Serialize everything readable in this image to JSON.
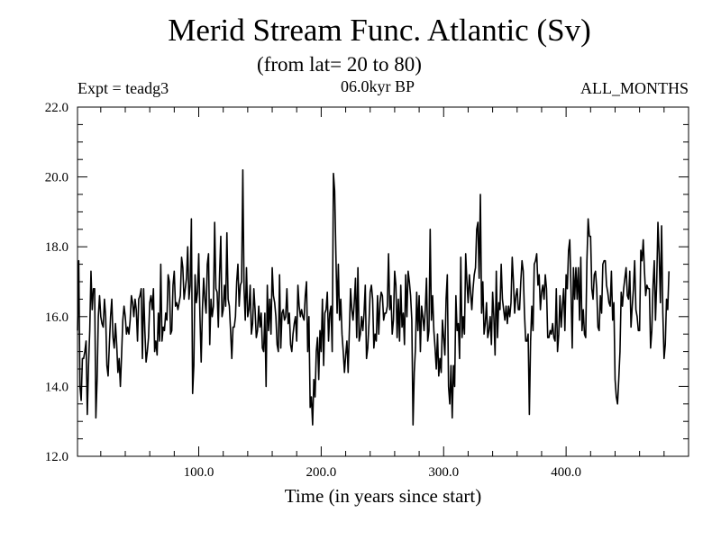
{
  "header": {
    "title": "Merid Stream Func. Atlantic (Sv)",
    "subtitle": "(from lat= 20 to 80)",
    "left_label": "Expt = teadg3",
    "center_label": "06.0kyr BP",
    "right_label": "ALL_MONTHS"
  },
  "chart_data": {
    "type": "line",
    "title": "Merid Stream Func. Atlantic (Sv)",
    "subtitle": "(from lat= 20 to 80)",
    "xlabel": "Time (in years since start)",
    "ylabel": "",
    "xlim": [
      1,
      500
    ],
    "ylim": [
      12.0,
      22.0
    ],
    "x_ticks": [
      100.0,
      200.0,
      300.0,
      400.0
    ],
    "x_tick_labels": [
      "100.0",
      "200.0",
      "300.0",
      "400.0"
    ],
    "y_ticks": [
      12.0,
      14.0,
      16.0,
      18.0,
      20.0,
      22.0
    ],
    "y_tick_labels": [
      "12.0",
      "14.0",
      "16.0",
      "18.0",
      "20.0",
      "22.0"
    ],
    "grid": false,
    "line_color": "#000000",
    "series": [
      {
        "name": "",
        "x_start": 1,
        "x_step": 1,
        "values": [
          15.6,
          17.6,
          14.0,
          13.6,
          14.8,
          14.8,
          15.0,
          15.3,
          13.2,
          14.6,
          15.6,
          17.3,
          16.2,
          16.8,
          16.8,
          13.1,
          14.2,
          16.0,
          16.6,
          16.0,
          15.8,
          15.7,
          16.5,
          16.0,
          14.6,
          14.3,
          15.2,
          16.0,
          16.5,
          15.4,
          15.1,
          15.8,
          15.2,
          14.4,
          14.8,
          14.0,
          14.9,
          15.9,
          16.3,
          16.0,
          15.5,
          15.7,
          15.5,
          15.9,
          16.6,
          16.4,
          16.0,
          16.5,
          16.2,
          15.3,
          16.5,
          16.6,
          16.8,
          14.8,
          16.8,
          15.6,
          14.7,
          15.0,
          15.4,
          16.4,
          16.6,
          16.2,
          16.8,
          15.0,
          15.3,
          14.9,
          16.1,
          15.3,
          17.5,
          15.3,
          15.7,
          15.6,
          16.1,
          15.9,
          17.2,
          17.0,
          15.5,
          15.6,
          16.9,
          17.3,
          16.3,
          16.4,
          16.2,
          16.4,
          16.6,
          17.7,
          17.4,
          16.5,
          16.8,
          17.1,
          18.0,
          16.5,
          16.9,
          18.8,
          13.8,
          14.6,
          17.2,
          16.4,
          16.7,
          17.8,
          16.0,
          14.7,
          16.2,
          17.1,
          16.5,
          16.1,
          17.5,
          17.8,
          15.2,
          16.5,
          16.0,
          16.3,
          18.7,
          16.8,
          16.7,
          15.7,
          17.2,
          18.3,
          16.0,
          16.2,
          16.9,
          16.3,
          18.4,
          16.5,
          16.3,
          15.6,
          14.8,
          15.7,
          15.7,
          16.0,
          17.0,
          17.5,
          16.3,
          16.9,
          17.0,
          20.2,
          16.8,
          15.9,
          17.4,
          16.0,
          16.2,
          16.9,
          15.5,
          15.8,
          16.8,
          16.2,
          15.4,
          15.6,
          16.3,
          15.7,
          16.1,
          15.1,
          15.0,
          16.1,
          14.0,
          16.9,
          15.6,
          16.5,
          15.5,
          17.4,
          16.6,
          16.4,
          16.0,
          15.2,
          15.0,
          17.2,
          15.1,
          16.1,
          16.2,
          15.9,
          16.0,
          16.8,
          15.8,
          16.1,
          15.2,
          15.0,
          15.5,
          15.8,
          16.0,
          15.3,
          16.9,
          16.3,
          16.0,
          16.2,
          16.0,
          15.9,
          16.6,
          17.0,
          15.0,
          16.0,
          13.4,
          13.7,
          12.9,
          14.2,
          13.7,
          15.0,
          15.4,
          14.2,
          15.6,
          15.0,
          16.5,
          14.6,
          16.1,
          16.2,
          16.7,
          15.3,
          16.1,
          16.3,
          15.0,
          20.1,
          19.6,
          17.8,
          16.1,
          17.5,
          15.9,
          16.5,
          15.5,
          15.0,
          14.4,
          14.9,
          15.3,
          14.4,
          15.6,
          16.8,
          16.2,
          15.9,
          16.4,
          17.1,
          15.4,
          17.4,
          15.3,
          15.5,
          16.0,
          15.6,
          16.1,
          16.9,
          14.8,
          15.1,
          15.8,
          16.7,
          16.9,
          16.5,
          15.1,
          15.5,
          15.3,
          16.6,
          15.5,
          16.4,
          16.7,
          16.6,
          15.9,
          16.1,
          16.1,
          16.3,
          17.8,
          16.2,
          16.6,
          15.5,
          15.9,
          17.3,
          16.9,
          15.4,
          16.5,
          15.3,
          16.9,
          15.7,
          16.1,
          15.2,
          17.2,
          16.0,
          17.3,
          17.0,
          16.6,
          15.9,
          12.9,
          14.4,
          15.1,
          16.7,
          15.6,
          16.6,
          15.0,
          16.3,
          16.0,
          15.6,
          16.2,
          17.1,
          15.3,
          15.6,
          18.5,
          15.9,
          16.6,
          15.6,
          15.1,
          14.5,
          15.5,
          14.3,
          14.8,
          14.4,
          15.9,
          15.4,
          14.9,
          16.5,
          17.2,
          14.0,
          13.5,
          14.6,
          13.1,
          14.6,
          14.0,
          16.6,
          15.6,
          15.8,
          14.8,
          17.7,
          15.4,
          16.0,
          15.5,
          17.8,
          17.0,
          16.4,
          17.2,
          16.7,
          16.2,
          16.8,
          17.2,
          17.4,
          18.5,
          18.7,
          17.1,
          19.5,
          16.1,
          17.0,
          15.5,
          15.8,
          16.4,
          15.4,
          15.6,
          16.0,
          15.2,
          16.7,
          16.0,
          14.9,
          17.3,
          15.4,
          16.4,
          16.2,
          17.5,
          16.5,
          16.2,
          15.9,
          16.3,
          15.8,
          16.3,
          16.0,
          16.4,
          17.7,
          17.0,
          16.1,
          16.6,
          16.8,
          16.2,
          16.2,
          17.0,
          17.6,
          17.3,
          16.1,
          15.3,
          15.3,
          15.5,
          13.2,
          15.3,
          16.3,
          15.6,
          17.5,
          17.6,
          17.8,
          16.9,
          17.2,
          16.2,
          16.7,
          16.9,
          16.5,
          17.2,
          16.8,
          15.4,
          15.4,
          15.6,
          15.5,
          15.8,
          15.4,
          15.3,
          16.8,
          15.0,
          15.5,
          16.6,
          15.7,
          16.3,
          16.8,
          15.6,
          17.2,
          16.8,
          17.9,
          18.2,
          16.8,
          15.1,
          17.4,
          16.5,
          17.4,
          16.5,
          17.4,
          15.9,
          17.7,
          15.6,
          16.2,
          15.5,
          15.4,
          17.6,
          18.8,
          18.3,
          18.3,
          16.8,
          16.5,
          17.2,
          17.3,
          16.8,
          15.7,
          15.6,
          16.6,
          16.1,
          17.5,
          17.6,
          17.6,
          16.9,
          16.7,
          16.4,
          16.3,
          17.3,
          15.9,
          16.4,
          14.2,
          13.7,
          13.5,
          14.2,
          15.0,
          16.7,
          16.3,
          16.8,
          17.1,
          17.4,
          16.6,
          16.5,
          17.3,
          15.7,
          16.3,
          16.8,
          17.6,
          16.2,
          16.0,
          15.6,
          15.6,
          17.9,
          17.6,
          18.2,
          17.3,
          16.6,
          16.9,
          16.8,
          16.8,
          15.1,
          15.6,
          16.9,
          17.6,
          15.9,
          17.0,
          18.7,
          17.8,
          16.4,
          18.6,
          16.1,
          14.8,
          15.2,
          16.5,
          16.2,
          17.3
        ]
      }
    ]
  }
}
